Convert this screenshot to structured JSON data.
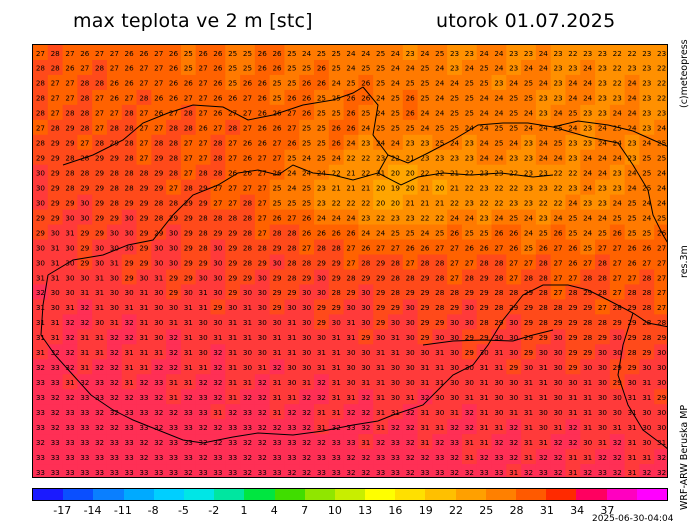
{
  "header": {
    "title_left": "max teplota ve 2 m [stc]",
    "title_right": "utorok 01.07.2025"
  },
  "side": {
    "credit": "(c)meteopress",
    "resolution": "res.3m",
    "model": "WRF-ARW Beruska MP"
  },
  "timestamp": "2025-06-30-04:04",
  "map": {
    "variable": "max 2 m temperature",
    "unit": "stc",
    "grid_columns": 43,
    "grid_rows": 29,
    "value_range_shown": [
      13,
      33
    ],
    "boundary_color": "#000000"
  },
  "colorbar": {
    "labels": [
      "-17",
      "-14",
      "-11",
      "-8",
      "-5",
      "-2",
      "1",
      "4",
      "7",
      "10",
      "13",
      "16",
      "19",
      "22",
      "25",
      "28",
      "31",
      "34",
      "37"
    ],
    "colors": [
      "#1a1aff",
      "#0a4fff",
      "#0a7fff",
      "#00aaff",
      "#00cfff",
      "#00e6e6",
      "#00e6a0",
      "#00e640",
      "#40dd00",
      "#90e600",
      "#c8ee00",
      "#ffff00",
      "#ffe000",
      "#ffc000",
      "#ffa000",
      "#ff8000",
      "#ff5a00",
      "#ff2a00",
      "#ff0060",
      "#ff00c0",
      "#ff00ff"
    ]
  }
}
